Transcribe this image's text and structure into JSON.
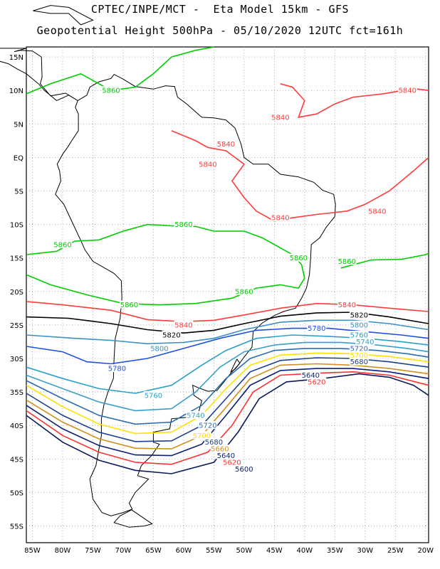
{
  "header": {
    "line1": "CPTEC/INPE/MCT -  Eta Model 15km - GFS",
    "line2": "Geopotential Height 500hPa - 05/10/2020 12UTC fct=161h"
  },
  "axes": {
    "lat_labels": [
      "15N",
      "10N",
      "5N",
      "EQ",
      "5S",
      "10S",
      "15S",
      "20S",
      "25S",
      "30S",
      "35S",
      "40S",
      "45S",
      "50S",
      "55S"
    ],
    "lon_labels": [
      "85W",
      "80W",
      "75W",
      "70W",
      "65W",
      "60W",
      "55W",
      "50W",
      "45W",
      "40W",
      "35W",
      "30W",
      "25W",
      "20W"
    ],
    "lon_range_deg": [
      -86,
      -19.5
    ],
    "lat_range_deg": [
      -57.5,
      16.5
    ],
    "grid": "dotted"
  },
  "contours": [
    {
      "value": "5860",
      "color": "#00cc00"
    },
    {
      "value": "5840",
      "color": "#ff3b3b"
    },
    {
      "value": "5820",
      "color": "#000000"
    },
    {
      "value": "5800",
      "color": "#3c8fc0"
    },
    {
      "value": "5780",
      "color": "#1f4fe0"
    },
    {
      "value": "5760",
      "color": "#2aa0c8"
    },
    {
      "value": "5740",
      "color": "#3a9ec9"
    },
    {
      "value": "5720",
      "color": "#2b6cb0"
    },
    {
      "value": "5700",
      "color": "#ffe000"
    },
    {
      "value": "5680",
      "color": "#1d3f8f"
    },
    {
      "value": "5660",
      "color": "#d09020"
    },
    {
      "value": "5640",
      "color": "#0b1f78"
    },
    {
      "value": "5620",
      "color": "#ff3030"
    },
    {
      "value": "5600",
      "color": "#0a1a5a"
    }
  ],
  "labels": [
    {
      "text": "5860",
      "color": "#00cc00",
      "lon": -72,
      "lat": 10
    },
    {
      "text": "5840",
      "color": "#ff3b3b",
      "lon": -23,
      "lat": 10
    },
    {
      "text": "5840",
      "color": "#ff3b3b",
      "lon": -44,
      "lat": 6
    },
    {
      "text": "5840",
      "color": "#ff3b3b",
      "lon": -53,
      "lat": 2
    },
    {
      "text": "5840",
      "color": "#ff3b3b",
      "lon": -56,
      "lat": -1
    },
    {
      "text": "5840",
      "color": "#ff3b3b",
      "lon": -44,
      "lat": -9
    },
    {
      "text": "5840",
      "color": "#ff3b3b",
      "lon": -28,
      "lat": -8
    },
    {
      "text": "5860",
      "color": "#00cc00",
      "lon": -60,
      "lat": -10
    },
    {
      "text": "5860",
      "color": "#00cc00",
      "lon": -80,
      "lat": -13
    },
    {
      "text": "5860",
      "color": "#00cc00",
      "lon": -41,
      "lat": -15
    },
    {
      "text": "5860",
      "color": "#00cc00",
      "lon": -33,
      "lat": -15.5
    },
    {
      "text": "5860",
      "color": "#00cc00",
      "lon": -50,
      "lat": -20
    },
    {
      "text": "5860",
      "color": "#00cc00",
      "lon": -69,
      "lat": -22
    },
    {
      "text": "5840",
      "color": "#ff3b3b",
      "lon": -33,
      "lat": -22
    },
    {
      "text": "5840",
      "color": "#ff3b3b",
      "lon": -60,
      "lat": -25
    },
    {
      "text": "5820",
      "color": "#000000",
      "lon": -31,
      "lat": -23.5
    },
    {
      "text": "5820",
      "color": "#000000",
      "lon": -62,
      "lat": -26.5
    },
    {
      "text": "5800",
      "color": "#3c8fc0",
      "lon": -31,
      "lat": -25
    },
    {
      "text": "5780",
      "color": "#1f4fe0",
      "lon": -38,
      "lat": -25.5
    },
    {
      "text": "5760",
      "color": "#2aa0c8",
      "lon": -31,
      "lat": -26.5
    },
    {
      "text": "5740",
      "color": "#3a9ec9",
      "lon": -30,
      "lat": -27.5
    },
    {
      "text": "5720",
      "color": "#2b6cb0",
      "lon": -31,
      "lat": -28.5
    },
    {
      "text": "5700",
      "color": "#ffe000",
      "lon": -31,
      "lat": -29.5
    },
    {
      "text": "5680",
      "color": "#1d3f8f",
      "lon": -31,
      "lat": -30.5
    },
    {
      "text": "5800",
      "color": "#3c8fc0",
      "lon": -64,
      "lat": -28.5
    },
    {
      "text": "5780",
      "color": "#1f4fe0",
      "lon": -71,
      "lat": -31.5
    },
    {
      "text": "5640",
      "color": "#0b1f78",
      "lon": -39,
      "lat": -32.5
    },
    {
      "text": "5620",
      "color": "#ff3030",
      "lon": -38,
      "lat": -33.5
    },
    {
      "text": "5760",
      "color": "#2aa0c8",
      "lon": -65,
      "lat": -35.5
    },
    {
      "text": "5740",
      "color": "#3a9ec9",
      "lon": -58,
      "lat": -38.5
    },
    {
      "text": "5720",
      "color": "#2b6cb0",
      "lon": -56,
      "lat": -40
    },
    {
      "text": "5700",
      "color": "#ffe000",
      "lon": -57,
      "lat": -41.5
    },
    {
      "text": "5680",
      "color": "#1d3f8f",
      "lon": -55,
      "lat": -42.5
    },
    {
      "text": "5660",
      "color": "#d09020",
      "lon": -54,
      "lat": -43.5
    },
    {
      "text": "5640",
      "color": "#0b1f78",
      "lon": -53,
      "lat": -44.5
    },
    {
      "text": "5620",
      "color": "#ff3030",
      "lon": -52,
      "lat": -45.5
    },
    {
      "text": "5600",
      "color": "#0a1a5a",
      "lon": -50,
      "lat": -46.5
    }
  ]
}
